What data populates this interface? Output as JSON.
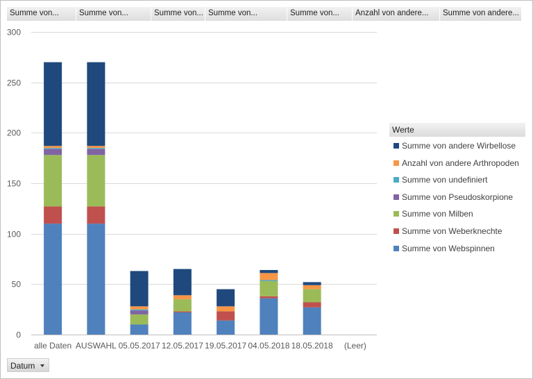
{
  "filter_fields": [
    "Summe von...",
    "Summe von...",
    "Summe von...",
    "Summe von...",
    "Summe von...",
    "Anzahl von andere...",
    "Summe von andere..."
  ],
  "legend": {
    "header": "Werte"
  },
  "axis_field_button": {
    "label": "Datum"
  },
  "colors": {
    "webspinnen": "#4f81bd",
    "weberknechte": "#c0504d",
    "milben": "#9bbb59",
    "pseudoskorpione": "#8064a2",
    "undefiniert": "#4bacc6",
    "andere_arthropoden": "#f79646",
    "andere_wirbellose": "#1f497d"
  },
  "chart_data": {
    "type": "bar",
    "stacked": true,
    "categories": [
      "alle Daten",
      "AUSWAHL",
      "05.05.2017",
      "12.05.2017",
      "19.05.2017",
      "04.05.2018",
      "18.05.2018",
      "(Leer)"
    ],
    "ylim": [
      0,
      300
    ],
    "yticks": [
      0,
      50,
      100,
      150,
      200,
      250,
      300
    ],
    "grid": true,
    "legend_position": "right",
    "series": [
      {
        "name": "Summe von Webspinnen",
        "color": "#4f81bd",
        "values": [
          110,
          110,
          10,
          22,
          14,
          36,
          27,
          0
        ]
      },
      {
        "name": "Summe von Weberknechte",
        "color": "#c0504d",
        "values": [
          17,
          17,
          0,
          1,
          9,
          2,
          5,
          0
        ]
      },
      {
        "name": "Summe von Milben",
        "color": "#9bbb59",
        "values": [
          51,
          51,
          10,
          12,
          0,
          15,
          13,
          0
        ]
      },
      {
        "name": "Summe von Pseudoskorpione",
        "color": "#8064a2",
        "values": [
          6,
          6,
          4,
          0,
          0,
          0,
          0,
          0
        ]
      },
      {
        "name": "Summe von undefiniert",
        "color": "#4bacc6",
        "values": [
          1,
          1,
          1,
          0,
          0,
          1,
          0,
          0
        ]
      },
      {
        "name": "Anzahl von andere Arthropoden",
        "color": "#f79646",
        "values": [
          2,
          2,
          3,
          4,
          5,
          7,
          4,
          0
        ]
      },
      {
        "name": "Summe von andere Wirbellose",
        "color": "#1f497d",
        "values": [
          83,
          83,
          35,
          26,
          17,
          3,
          3,
          0
        ]
      }
    ]
  }
}
